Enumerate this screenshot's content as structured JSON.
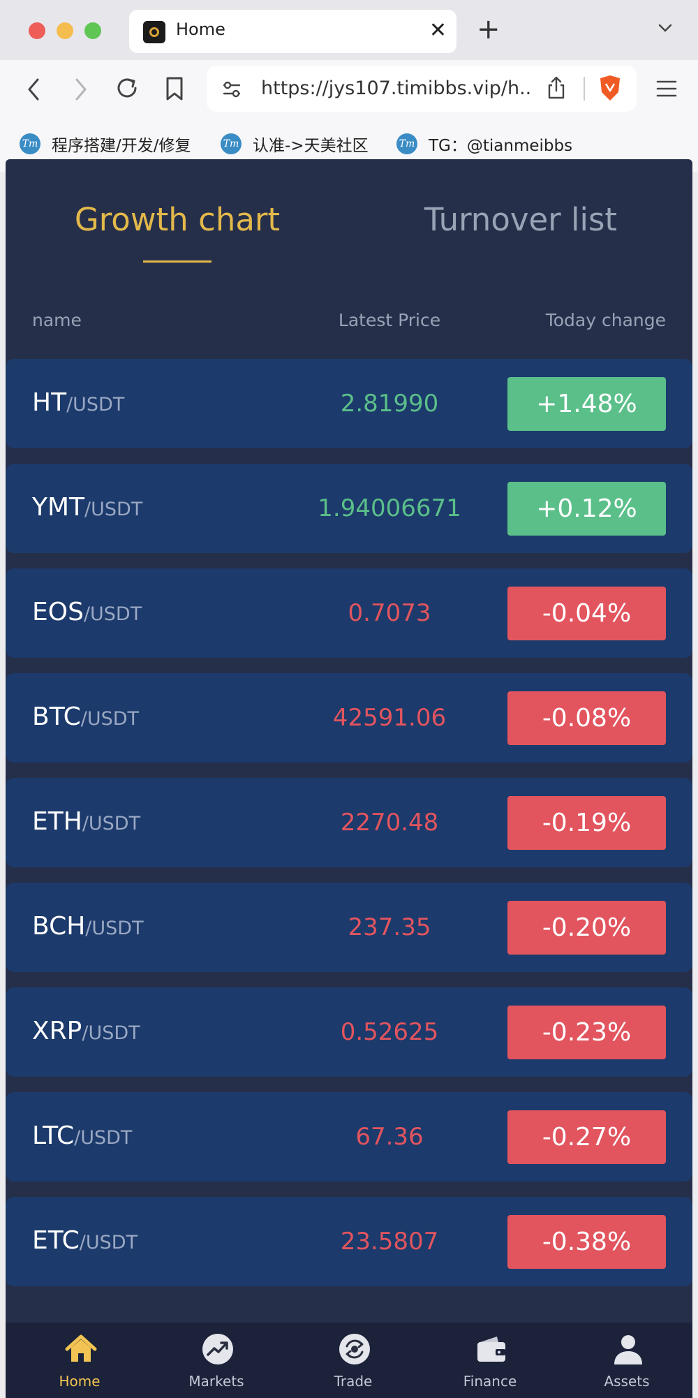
{
  "browser": {
    "tab_title": "Home",
    "close_glyph": "✕",
    "new_tab_glyph": "+",
    "url": "https://jys107.timibbs.vip/h...",
    "bookmarks": [
      {
        "label": "程序搭建/开发/修复",
        "icon_text": "Tm"
      },
      {
        "label": "认准->天美社区",
        "icon_text": "Tm"
      },
      {
        "label": "TG：@tianmeibbs",
        "icon_text": "Tm"
      }
    ]
  },
  "tabs": {
    "growth": "Growth chart",
    "turnover": "Turnover list"
  },
  "columns": {
    "name": "name",
    "price": "Latest Price",
    "change": "Today change"
  },
  "colors": {
    "up": "#5bbf8a",
    "down": "#e2555f",
    "accent": "#e3b94a"
  },
  "rows": [
    {
      "base": "HT",
      "quote": "/USDT",
      "price": "2.81990",
      "change": "+1.48%",
      "dir": "up"
    },
    {
      "base": "YMT",
      "quote": "/USDT",
      "price": "1.94006671",
      "change": "+0.12%",
      "dir": "up"
    },
    {
      "base": "EOS",
      "quote": "/USDT",
      "price": "0.7073",
      "change": "-0.04%",
      "dir": "down"
    },
    {
      "base": "BTC",
      "quote": "/USDT",
      "price": "42591.06",
      "change": "-0.08%",
      "dir": "down"
    },
    {
      "base": "ETH",
      "quote": "/USDT",
      "price": "2270.48",
      "change": "-0.19%",
      "dir": "down"
    },
    {
      "base": "BCH",
      "quote": "/USDT",
      "price": "237.35",
      "change": "-0.20%",
      "dir": "down"
    },
    {
      "base": "XRP",
      "quote": "/USDT",
      "price": "0.52625",
      "change": "-0.23%",
      "dir": "down"
    },
    {
      "base": "LTC",
      "quote": "/USDT",
      "price": "67.36",
      "change": "-0.27%",
      "dir": "down"
    },
    {
      "base": "ETC",
      "quote": "/USDT",
      "price": "23.5807",
      "change": "-0.38%",
      "dir": "down"
    }
  ],
  "bottom_nav": [
    {
      "label": "Home",
      "icon": "home-icon",
      "active": true
    },
    {
      "label": "Markets",
      "icon": "markets-icon",
      "active": false
    },
    {
      "label": "Trade",
      "icon": "trade-icon",
      "active": false
    },
    {
      "label": "Finance",
      "icon": "wallet-icon",
      "active": false
    },
    {
      "label": "Assets",
      "icon": "user-icon",
      "active": false
    }
  ]
}
